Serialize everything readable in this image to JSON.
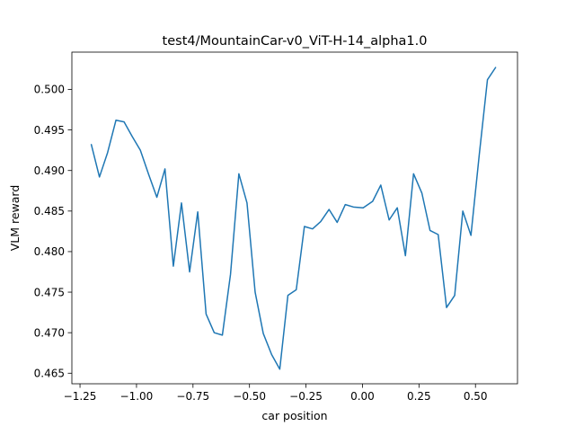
{
  "chart_data": {
    "type": "line",
    "title": "test4/MountainCar-v0_ViT-H-14_alpha1.0",
    "xlabel": "car position",
    "ylabel": "VLM reward",
    "xlim": [
      -1.286,
      0.686
    ],
    "ylim": [
      0.4637,
      0.5046
    ],
    "xticks": [
      -1.25,
      -1.0,
      -0.75,
      -0.5,
      -0.25,
      0.0,
      0.25,
      0.5
    ],
    "xtick_labels": [
      "−1.25",
      "−1.00",
      "−0.75",
      "−0.50",
      "−0.25",
      "0.00",
      "0.25",
      "0.50"
    ],
    "yticks": [
      0.465,
      0.47,
      0.475,
      0.48,
      0.485,
      0.49,
      0.495,
      0.5
    ],
    "ytick_labels": [
      "0.465",
      "0.470",
      "0.475",
      "0.480",
      "0.485",
      "0.490",
      "0.495",
      "0.500"
    ],
    "grid": false,
    "line_color": "#1f77b4",
    "series": [
      {
        "x": [
          -1.2,
          -1.164,
          -1.128,
          -1.091,
          -1.055,
          -1.019,
          -0.983,
          -0.946,
          -0.91,
          -0.874,
          -0.837,
          -0.801,
          -0.765,
          -0.729,
          -0.692,
          -0.656,
          -0.62,
          -0.584,
          -0.547,
          -0.511,
          -0.475,
          -0.439,
          -0.402,
          -0.366,
          -0.33,
          -0.293,
          -0.257,
          -0.221,
          -0.185,
          -0.148,
          -0.112,
          -0.076,
          -0.04,
          0.003,
          0.045,
          0.081,
          0.118,
          0.154,
          0.19,
          0.226,
          0.263,
          0.299,
          0.335,
          0.372,
          0.408,
          0.444,
          0.48,
          0.517,
          0.553,
          0.589
        ],
        "values": [
          0.4932,
          0.4892,
          0.4922,
          0.4962,
          0.496,
          0.4942,
          0.4925,
          0.4895,
          0.4867,
          0.4902,
          0.4782,
          0.486,
          0.4775,
          0.4849,
          0.4723,
          0.47,
          0.4697,
          0.4772,
          0.4896,
          0.486,
          0.475,
          0.4699,
          0.4673,
          0.4655,
          0.4746,
          0.4753,
          0.4831,
          0.4828,
          0.4837,
          0.4852,
          0.4836,
          0.4858,
          0.4855,
          0.4854,
          0.4862,
          0.4882,
          0.4839,
          0.4854,
          0.4795,
          0.4896,
          0.4872,
          0.4826,
          0.4821,
          0.4731,
          0.4746,
          0.485,
          0.482,
          0.492,
          0.5012,
          0.5027
        ]
      }
    ]
  }
}
